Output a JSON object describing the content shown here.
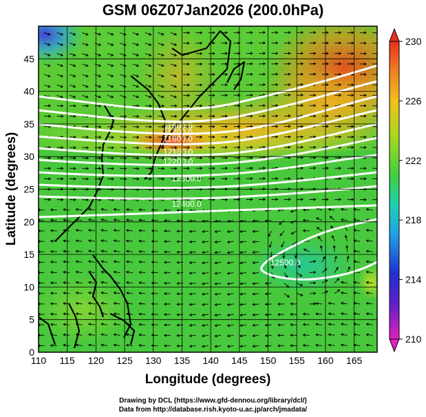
{
  "title": "GSM 06Z07Jan2026 (200.0hPa)",
  "map": {
    "xlabel": "Longitude (degrees)",
    "ylabel": "Latitude  (degrees)",
    "xlim": [
      110,
      169
    ],
    "ylim": [
      0,
      50
    ],
    "xticks": [
      "110",
      "115",
      "120",
      "125",
      "130",
      "135",
      "140",
      "145",
      "150",
      "155",
      "160",
      "165"
    ],
    "yticks": [
      "0",
      "5",
      "10",
      "15",
      "20",
      "25",
      "30",
      "35",
      "40",
      "45"
    ]
  },
  "colorbar": {
    "ticks": [
      "210",
      "214",
      "218",
      "222",
      "226",
      "230"
    ],
    "min": 210,
    "max": 230
  },
  "contour_labels": [
    {
      "text": "11600.0",
      "lon": 134.3,
      "lat": 34.3
    },
    {
      "text": "11700.0",
      "lon": 134.3,
      "lat": 33.3
    },
    {
      "text": "11800.0",
      "lon": 134.3,
      "lat": 32.3
    },
    {
      "text": "12100.0",
      "lon": 134.3,
      "lat": 30.3
    },
    {
      "text": "12200.0",
      "lon": 134.3,
      "lat": 28.8
    },
    {
      "text": "12300.0",
      "lon": 135.8,
      "lat": 26.2
    },
    {
      "text": "12400.0",
      "lon": 135.8,
      "lat": 22.3
    },
    {
      "text": "12500.0",
      "lon": 153.0,
      "lat": 13.3
    }
  ],
  "credits": {
    "line1": "Drawing by DCL (https://www.gfd-dennou.org/library/dcl/)",
    "line2": "Data from http://database.rish.kyoto-u.ac.jp/arch/jmadata/"
  },
  "colors": {
    "background_field": "#3cc83c",
    "contour": "#ffffff",
    "vectors": "#000000"
  }
}
